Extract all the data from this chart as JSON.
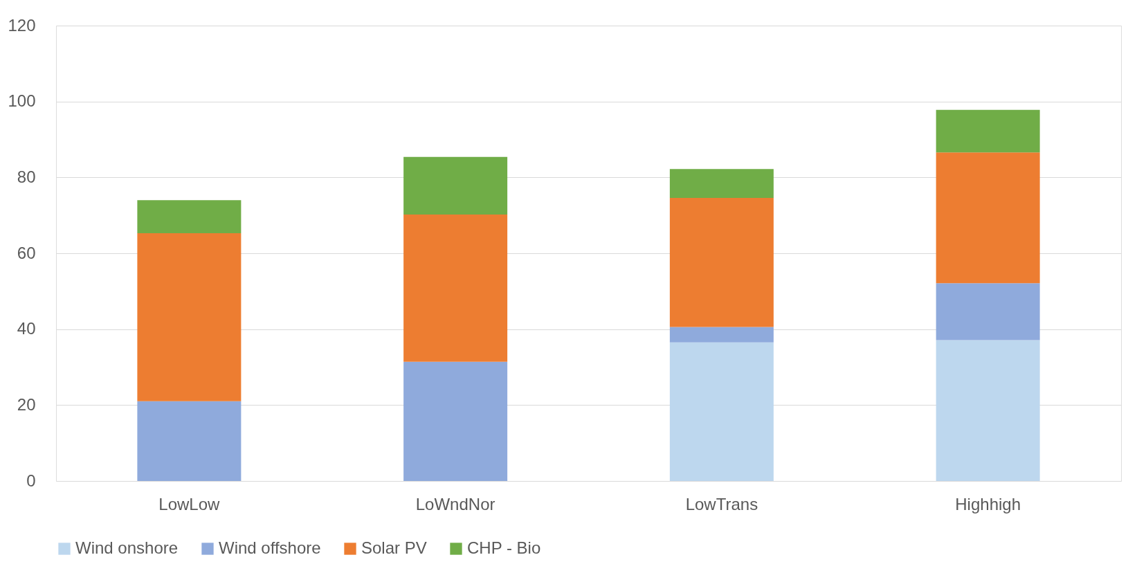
{
  "chart_data": {
    "type": "bar",
    "stacked": true,
    "categories": [
      "LowLow",
      "LoWndNor",
      "LowTrans",
      "Highhigh"
    ],
    "series": [
      {
        "name": "Wind onshore",
        "color": "#bdd7ee",
        "values": [
          0,
          0,
          36.5,
          37.1
        ]
      },
      {
        "name": "Wind offshore",
        "color": "#8faadc",
        "values": [
          21,
          31.4,
          4.1,
          15
        ]
      },
      {
        "name": "Solar PV",
        "color": "#ed7d31",
        "values": [
          44.3,
          38.8,
          34,
          34.5
        ]
      },
      {
        "name": "CHP - Bio",
        "color": "#70ad47",
        "values": [
          8.7,
          15.2,
          7.6,
          11.2
        ]
      }
    ],
    "ylim": [
      0,
      120
    ],
    "yticks": [
      0,
      20,
      40,
      60,
      80,
      100,
      120
    ],
    "grid": "y",
    "legend": "bottom"
  }
}
